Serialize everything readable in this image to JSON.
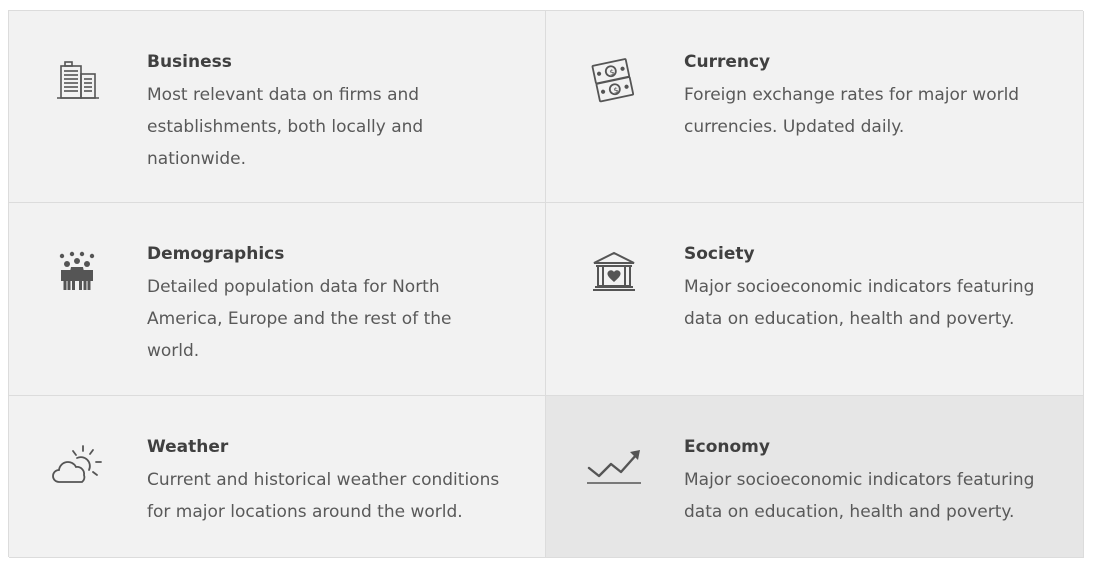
{
  "categories": [
    {
      "title": "Business",
      "description": "Most relevant data on firms and establishments, both locally and nationwide.",
      "icon": "buildings-icon"
    },
    {
      "title": "Currency",
      "description": "Foreign exchange rates for major world currencies. Updated daily.",
      "icon": "banknotes-icon"
    },
    {
      "title": "Demographics",
      "description": "Detailed population data for North America, Europe and the rest of the world.",
      "icon": "people-icon"
    },
    {
      "title": "Society",
      "description": "Major socioeconomic indicators featuring data on education, health and poverty.",
      "icon": "institution-heart-icon"
    },
    {
      "title": "Weather",
      "description": "Current and historical weather conditions for major locations around the world.",
      "icon": "cloud-sun-icon"
    },
    {
      "title": "Economy",
      "description": "Major socioeconomic indicators featuring data on education, health and poverty.",
      "icon": "trend-up-icon",
      "selected": true
    }
  ],
  "colors": {
    "tile_background": "#f2f2f2",
    "tile_selected_background": "#e6e6e6",
    "border": "#dcdcdc",
    "title_text": "#404040",
    "description_text": "#595959",
    "icon": "#555555"
  }
}
